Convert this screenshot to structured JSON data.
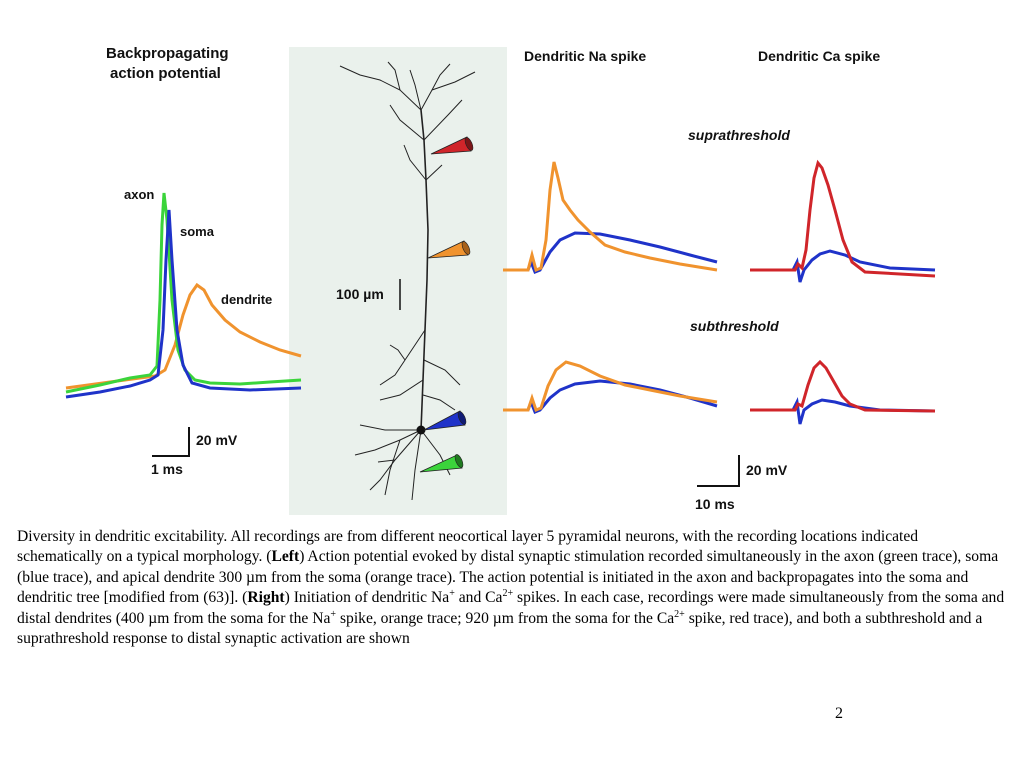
{
  "figure": {
    "left_title_line1": "Backpropagating",
    "left_title_line2": "action potential",
    "label_axon": "axon",
    "label_soma": "soma",
    "label_dendrite": "dendrite",
    "left_scale_v": "20 mV",
    "left_scale_t": "1 ms",
    "center_scale": "100 µm",
    "na_title": "Dendritic Na spike",
    "ca_title": "Dendritic Ca spike",
    "supra_label": "suprathreshold",
    "sub_label": "subthreshold",
    "right_scale_v": "20 mV",
    "right_scale_t": "10 ms",
    "colors": {
      "axon": "#3bd43b",
      "soma": "#1f33c9",
      "dendrite_400": "#f0932e",
      "dendrite_920": "#d0252a",
      "panel_bg": "#eaf1ec"
    }
  },
  "caption": {
    "intro": "Diversity in dendritic excitability. All recordings are from different neocortical layer 5 pyramidal neurons, with the recording locations indicated schematically on a typical morphology. (",
    "left_label": "Left",
    "left_text": ") Action potential evoked by distal synaptic stimulation recorded simultaneously in the axon (green trace), soma (blue trace), and apical dendrite 300 µm from the soma (orange trace). The action potential is initiated in the axon and backpropagates into the soma and dendritic tree [modified from (63)]. (",
    "right_label": "Right",
    "right_text_a": ") Initiation of dendritic Na",
    "sup_plus_a": "+",
    "right_text_b": " and Ca",
    "sup_2plus_a": "2+",
    "right_text_c": " spikes. In each case, recordings were made simultaneously from the soma and distal dendrites (400 µm from the soma for the Na",
    "sup_plus_b": "+",
    "right_text_d": " spike, orange trace; 920 µm from the soma for the Ca",
    "sup_2plus_b": "2+",
    "right_text_e": " spike, red trace), and both a subthreshold and a suprathreshold response to distal synaptic activation are shown"
  },
  "page_number": "2"
}
